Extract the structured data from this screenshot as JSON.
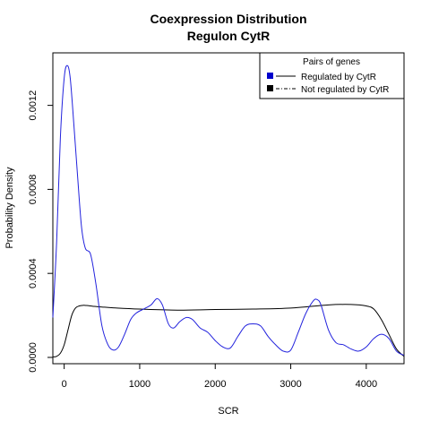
{
  "chart_data": {
    "type": "line",
    "title": "Coexpression Distribution",
    "subtitle": "Regulon CytR",
    "xlabel": "SCR",
    "ylabel": "Probability Density",
    "xlim": [
      -150,
      4500
    ],
    "ylim": [
      -3e-05,
      0.00145
    ],
    "x_ticks": [
      0,
      1000,
      2000,
      3000,
      4000
    ],
    "x_tick_labels": [
      "0",
      "1000",
      "2000",
      "3000",
      "4000"
    ],
    "y_ticks": [
      0,
      0.0004,
      0.0008,
      0.0012
    ],
    "y_tick_labels": [
      "0.0000",
      "0.0004",
      "0.0008",
      "0.0012"
    ],
    "grid": false,
    "legend": {
      "title": "Pairs of genes",
      "placement": "top-right",
      "entries": [
        {
          "label": "Regulated by  CytR",
          "color": "#0000cc",
          "line": "solid"
        },
        {
          "label": "Not regulated by  CytR",
          "color": "#000000",
          "line": "dashdot"
        }
      ]
    },
    "series": [
      {
        "name": "Regulated by  CytR",
        "color": "#2222dd",
        "x": [
          -150,
          -100,
          -50,
          0,
          40,
          80,
          130,
          180,
          230,
          280,
          350,
          420,
          500,
          580,
          650,
          720,
          800,
          880,
          950,
          1050,
          1150,
          1230,
          1300,
          1380,
          1450,
          1530,
          1620,
          1700,
          1800,
          1900,
          2000,
          2100,
          2200,
          2300,
          2400,
          2500,
          2600,
          2700,
          2800,
          2900,
          3000,
          3100,
          3200,
          3300,
          3350,
          3400,
          3500,
          3600,
          3700,
          3800,
          3900,
          4000,
          4100,
          4200,
          4300,
          4400,
          4500
        ],
        "y": [
          0.00019,
          0.00055,
          0.00105,
          0.00133,
          0.00139,
          0.00133,
          0.0011,
          0.00085,
          0.00062,
          0.00052,
          0.00049,
          0.00035,
          0.00015,
          6e-05,
          3.5e-05,
          5e-05,
          0.00011,
          0.00018,
          0.00021,
          0.00023,
          0.00025,
          0.00028,
          0.00025,
          0.00016,
          0.00014,
          0.00017,
          0.00019,
          0.00018,
          0.00014,
          0.00012,
          8e-05,
          5e-05,
          4.5e-05,
          0.0001,
          0.00015,
          0.00016,
          0.00015,
          0.0001,
          6e-05,
          3e-05,
          3.5e-05,
          0.00012,
          0.00021,
          0.00027,
          0.000275,
          0.00025,
          0.00013,
          7e-05,
          6e-05,
          4e-05,
          3e-05,
          5e-05,
          9e-05,
          0.00011,
          9e-05,
          3e-05,
          1e-05
        ]
      },
      {
        "name": "Not regulated by  CytR",
        "color": "#000000",
        "x": [
          -150,
          -100,
          -50,
          0,
          50,
          100,
          150,
          200,
          250,
          300,
          400,
          500,
          700,
          1000,
          1500,
          2000,
          2500,
          3000,
          3500,
          3800,
          4000,
          4100,
          4200,
          4300,
          4400,
          4500
        ],
        "y": [
          2e-06,
          5e-06,
          2e-05,
          6e-05,
          0.00013,
          0.0002,
          0.000235,
          0.000245,
          0.000248,
          0.000247,
          0.000243,
          0.00024,
          0.000235,
          0.00023,
          0.000225,
          0.000228,
          0.00023,
          0.000235,
          0.00025,
          0.000252,
          0.000245,
          0.00023,
          0.00018,
          0.00011,
          4e-05,
          5e-06
        ]
      }
    ]
  }
}
